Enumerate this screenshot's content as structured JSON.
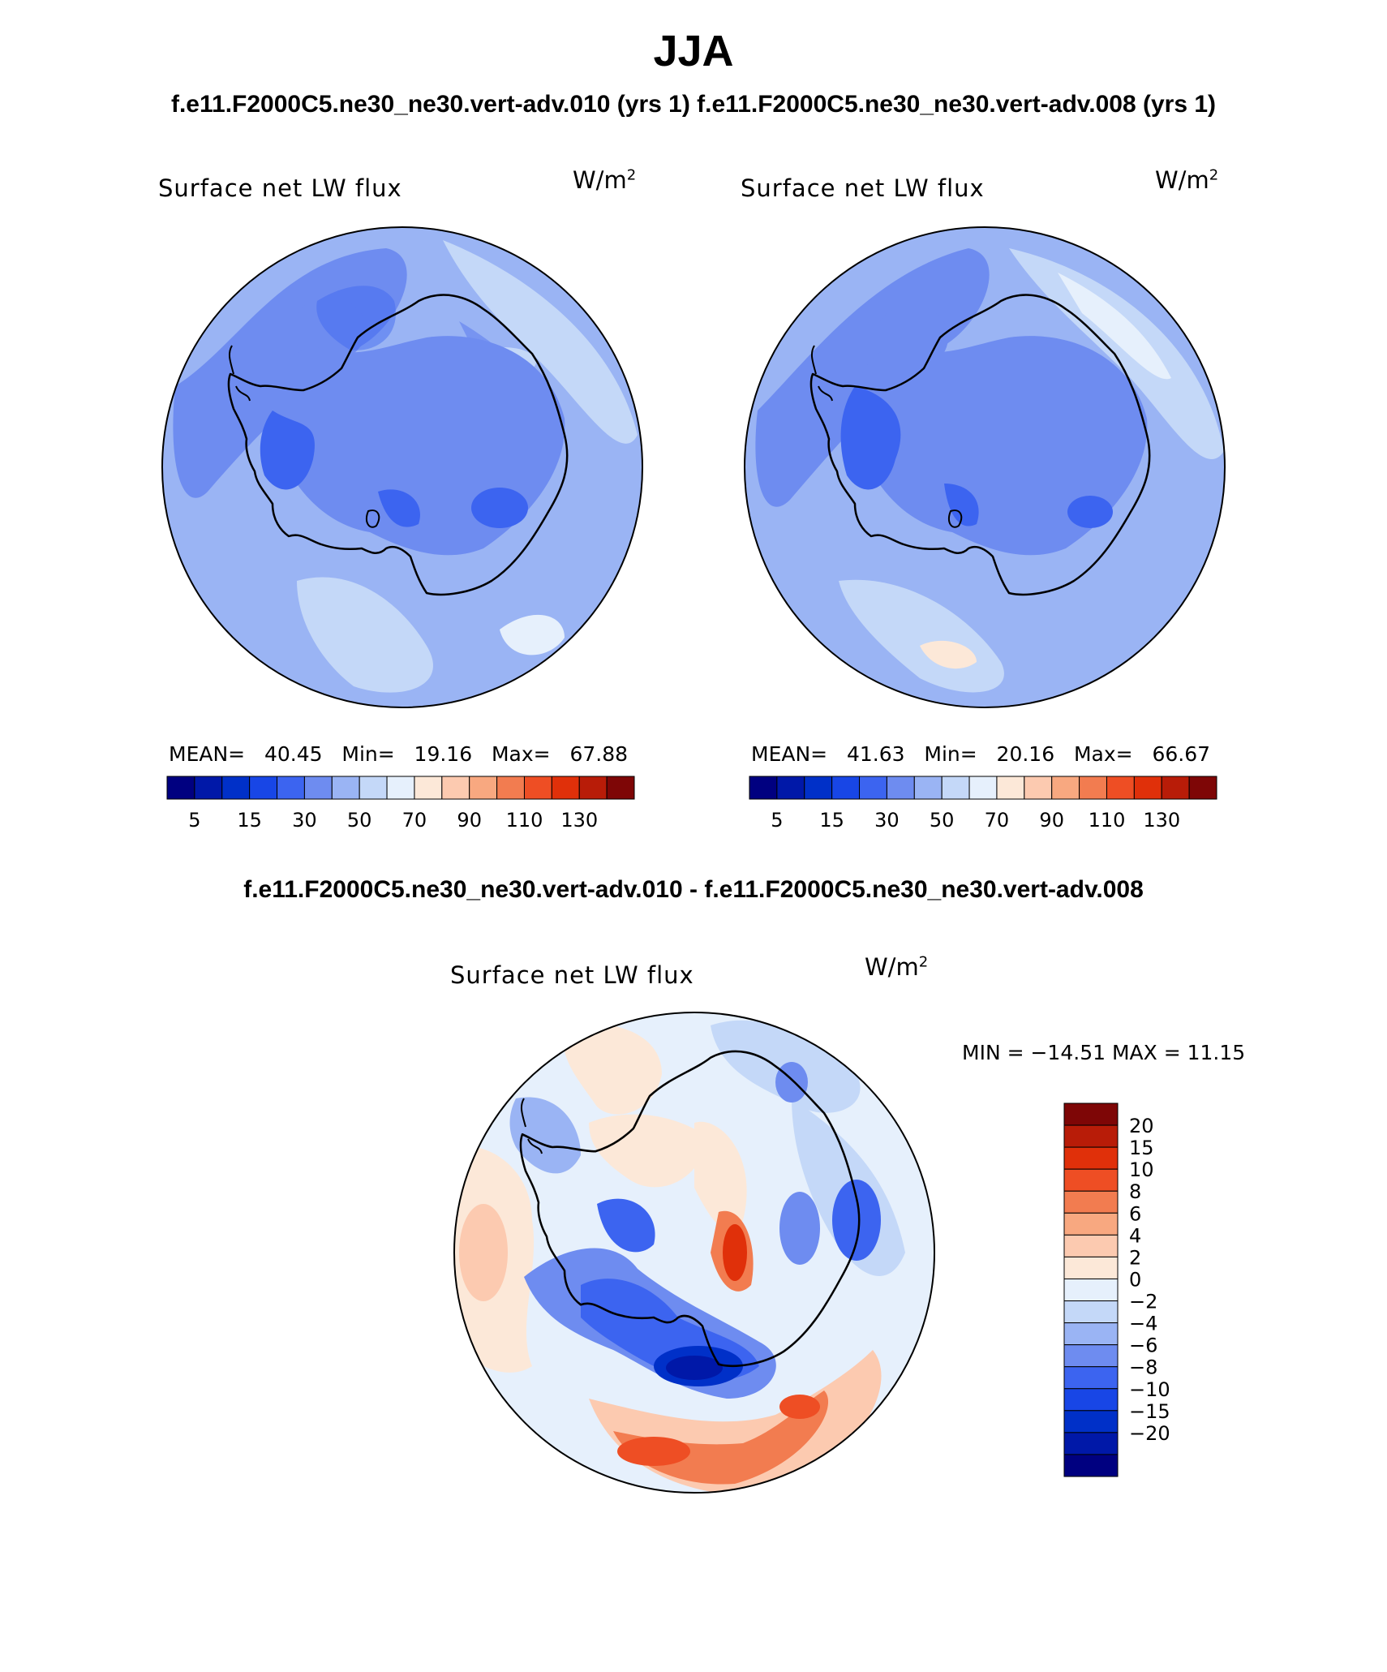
{
  "page": {
    "season": "JJA",
    "subtitle": "f.e11.F2000C5.ne30_ne30.vert-adv.010 (yrs 1) f.e11.F2000C5.ne30_ne30.vert-adv.008 (yrs 1)",
    "diff_title": "f.e11.F2000C5.ne30_ne30.vert-adv.010 - f.e11.F2000C5.ne30_ne30.vert-adv.008"
  },
  "panels": [
    {
      "id": "left",
      "variable": "Surface net LW flux",
      "units_base": "W/m",
      "units_exp": "2",
      "mean_label": "MEAN=",
      "mean": "40.45",
      "min_label": "Min=",
      "min": "19.16",
      "max_label": "Max=",
      "max": "67.88"
    },
    {
      "id": "right",
      "variable": "Surface net LW flux",
      "units_base": "W/m",
      "units_exp": "2",
      "mean_label": "MEAN=",
      "mean": "41.63",
      "min_label": "Min=",
      "min": "20.16",
      "max_label": "Max=",
      "max": "66.67"
    }
  ],
  "diff_panel": {
    "variable": "Surface net LW flux",
    "units_base": "W/m",
    "units_exp": "2",
    "minmax": "MIN = −14.51  MAX =   11.15"
  },
  "abs_colorbar": {
    "colors": [
      "#000080",
      "#0018a8",
      "#0030c8",
      "#1846e6",
      "#3c64f0",
      "#6e8cf0",
      "#9ab4f4",
      "#c4d8f8",
      "#e6f0fc",
      "#fce8d8",
      "#fccab0",
      "#f8a880",
      "#f27c50",
      "#ee4e24",
      "#e0300a",
      "#b81c08",
      "#7e0606"
    ],
    "tick_labels": [
      "5",
      "15",
      "30",
      "50",
      "70",
      "90",
      "110",
      "130"
    ]
  },
  "diff_colorbar": {
    "colors": [
      "#000080",
      "#0018a8",
      "#0030c8",
      "#1846e6",
      "#3c64f0",
      "#6e8cf0",
      "#9ab4f4",
      "#c4d8f8",
      "#e6f0fc",
      "#fce8d8",
      "#fccab0",
      "#f8a880",
      "#f27c50",
      "#ee4e24",
      "#e0300a",
      "#b81c08",
      "#7e0606"
    ],
    "tick_labels": [
      "20",
      "15",
      "10",
      "8",
      "6",
      "4",
      "2",
      "0",
      "−2",
      "−4",
      "−6",
      "−8",
      "−10",
      "−15",
      "−20"
    ]
  },
  "colors": {
    "land_outline": "#000000",
    "text": "#000000"
  }
}
